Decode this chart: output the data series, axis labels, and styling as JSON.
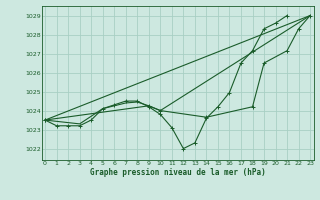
{
  "title": "Graphe pression niveau de la mer (hPa)",
  "bg_color": "#cde8e0",
  "grid_color": "#a8cfc4",
  "line_color": "#1a5c2a",
  "x_ticks": [
    0,
    1,
    2,
    3,
    4,
    5,
    6,
    7,
    8,
    9,
    10,
    11,
    12,
    13,
    14,
    15,
    16,
    17,
    18,
    19,
    20,
    21,
    22,
    23
  ],
  "y_ticks": [
    1022,
    1023,
    1024,
    1025,
    1026,
    1027,
    1028,
    1029
  ],
  "ylim": [
    1021.4,
    1029.5
  ],
  "xlim": [
    -0.3,
    23.3
  ],
  "series_main": {
    "x": [
      0,
      1,
      2,
      3,
      4,
      5,
      6,
      7,
      8,
      9,
      10,
      11,
      12,
      13,
      14,
      15,
      16,
      17,
      18,
      19,
      20,
      21
    ],
    "y": [
      1023.5,
      1023.2,
      1023.2,
      1023.2,
      1023.5,
      1024.1,
      1024.3,
      1024.5,
      1024.5,
      1024.2,
      1023.8,
      1023.1,
      1022.0,
      1022.3,
      1023.6,
      1024.2,
      1024.95,
      1026.5,
      1027.15,
      1028.3,
      1028.6,
      1029.0
    ]
  },
  "series_smooth": {
    "x": [
      0,
      3,
      5,
      7,
      8,
      9,
      10,
      23
    ],
    "y": [
      1023.5,
      1023.3,
      1024.1,
      1024.4,
      1024.45,
      1024.25,
      1024.0,
      1029.0
    ]
  },
  "series_straight": {
    "x": [
      0,
      23
    ],
    "y": [
      1023.5,
      1029.0
    ]
  },
  "series_triangle": {
    "x": [
      0,
      9,
      10,
      14,
      18,
      19,
      21,
      22,
      23
    ],
    "y": [
      1023.5,
      1024.25,
      1024.0,
      1023.65,
      1024.2,
      1026.5,
      1027.15,
      1028.3,
      1029.0
    ]
  }
}
